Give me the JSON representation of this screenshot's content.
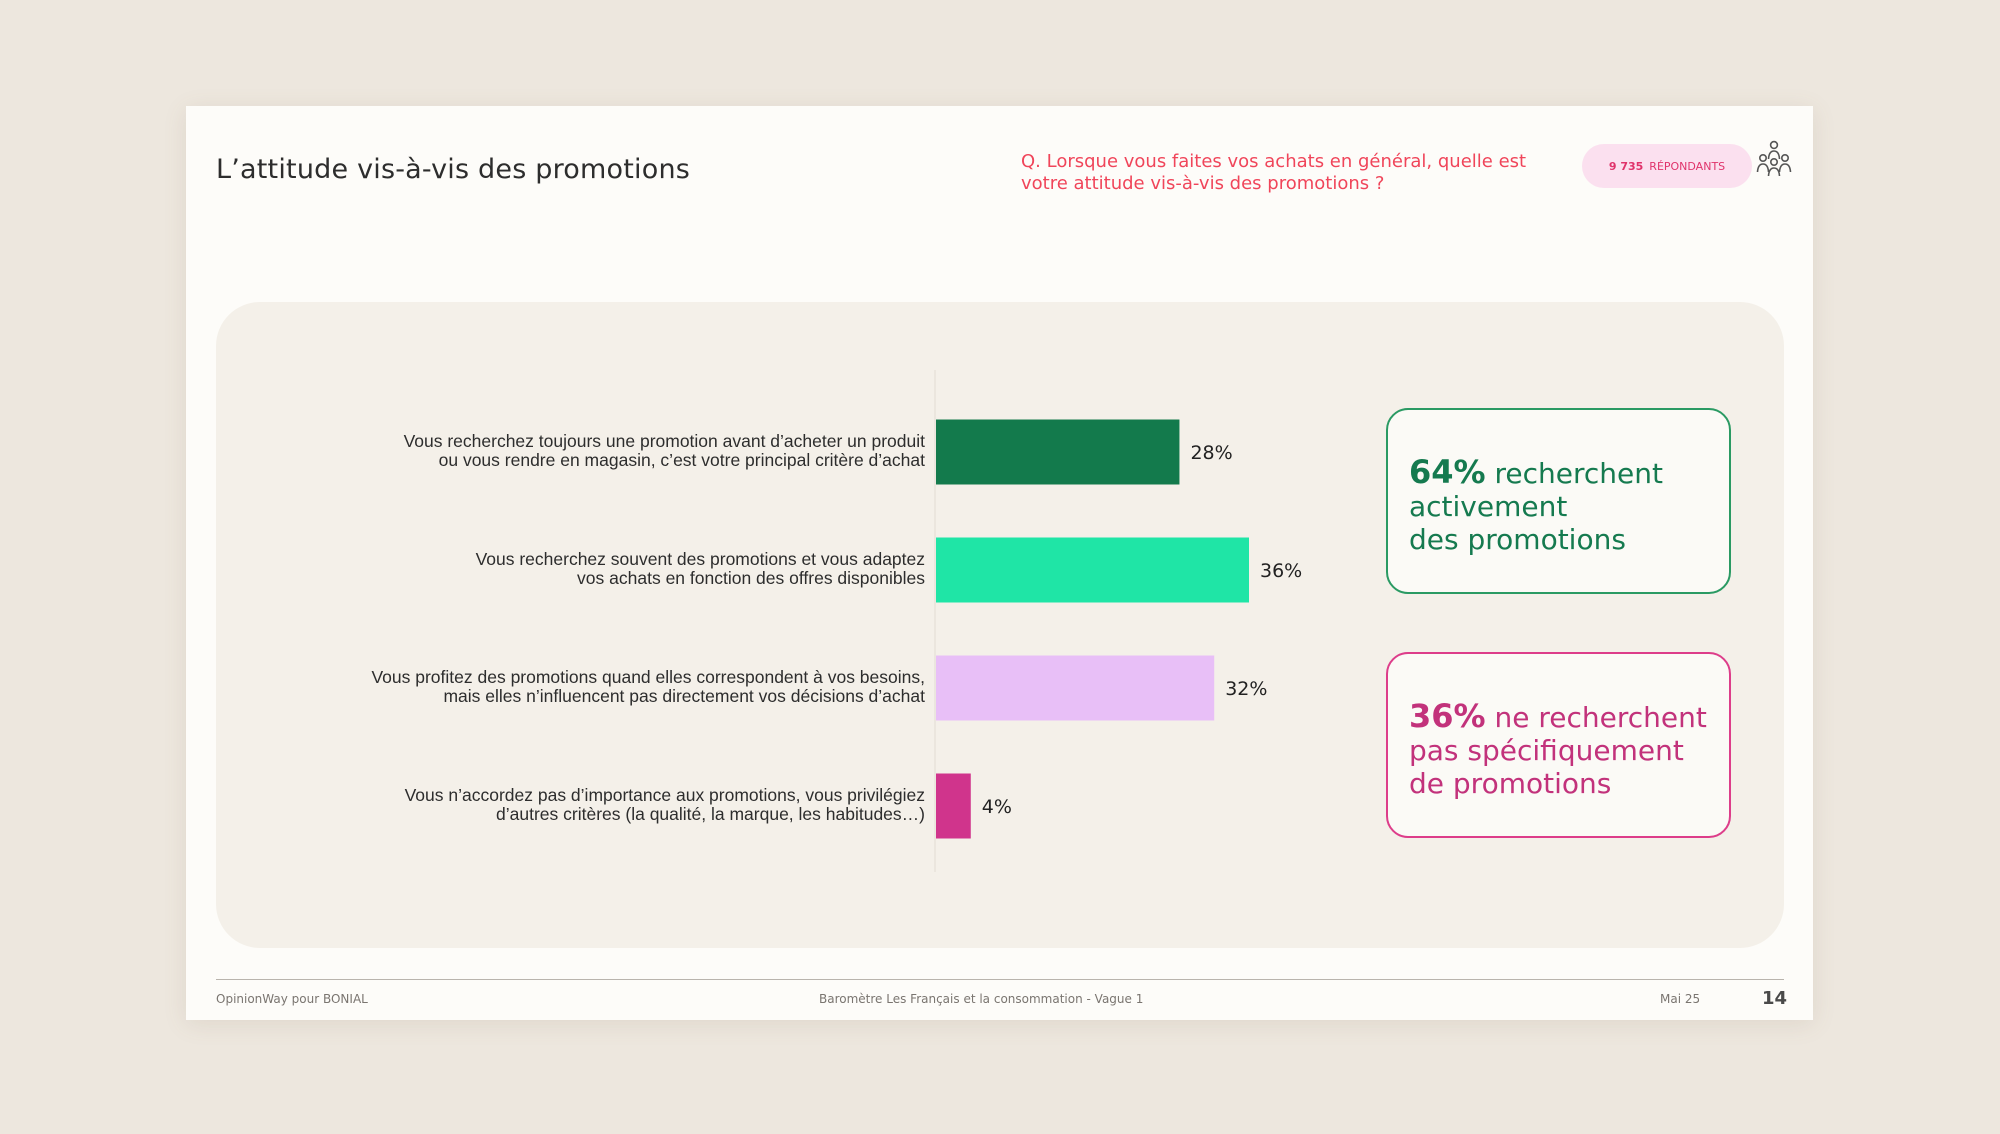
{
  "slide": {
    "title": "L’attitude vis-à-vis des promotions",
    "question": "Q. Lorsque vous faites vos achats en général, quelle est votre attitude vis-à-vis des promotions ?",
    "respondents_count": "9 735",
    "respondents_label": "RÉPONDANTS",
    "respondents_icon": "people-group-icon"
  },
  "chart_data": {
    "type": "bar",
    "orientation": "horizontal",
    "unit": "%",
    "categories": [
      [
        "Vous recherchez toujours une promotion avant d’acheter un produit",
        "ou vous rendre en magasin, c’est votre principal critère d’achat"
      ],
      [
        "Vous recherchez souvent des promotions et vous adaptez",
        "vos achats en fonction des offres disponibles"
      ],
      [
        "Vous profitez des promotions quand elles correspondent à vos besoins,",
        "mais elles n’influencent pas directement vos décisions d’achat"
      ],
      [
        "Vous n’accordez pas d’importance aux promotions, vous privilégiez",
        "d’autres critères (la qualité, la marque, les habitudes…)"
      ]
    ],
    "values": [
      28,
      36,
      32,
      4
    ],
    "value_labels": [
      "28%",
      "36%",
      "32%",
      "4%"
    ],
    "colors": [
      "#137a4c",
      "#1fe5a6",
      "#e8bff7",
      "#d0348c"
    ],
    "xlim": [
      0,
      36
    ],
    "grid": false
  },
  "callouts": [
    {
      "pct": "64%",
      "lines": [
        "recherchent",
        "activement",
        "des promotions"
      ],
      "color": "#157a4f"
    },
    {
      "pct": "36%",
      "lines": [
        "ne recherchent",
        "pas spécifiquement",
        "de promotions"
      ],
      "color": "#c2327b"
    }
  ],
  "footer": {
    "left": "OpinionWay pour BONIAL",
    "center": "Baromètre Les Français et la consommation - Vague 1",
    "date": "Mai 25",
    "page": "14"
  }
}
